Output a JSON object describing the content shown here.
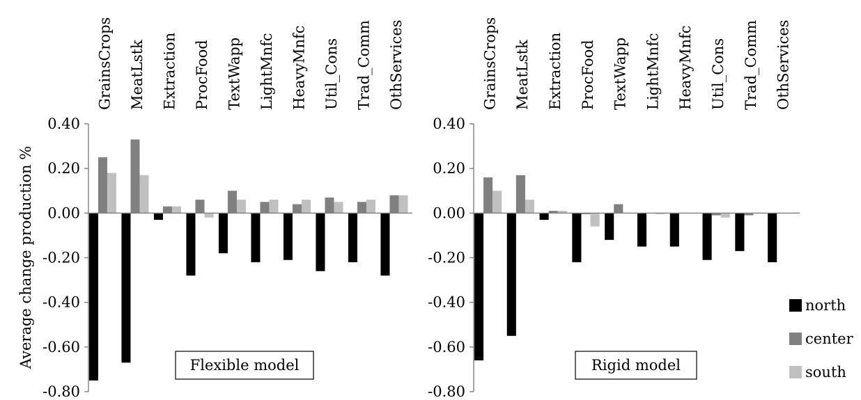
{
  "chart_data": [
    {
      "type": "bar",
      "panel_label": "Flexible model",
      "categories": [
        "GrainsCrops",
        "MeatLstk",
        "Extraction",
        "ProcFood",
        "TextWapp",
        "LightMnfc",
        "HeavyMnfc",
        "Util_Cons",
        "Trad_Comm",
        "OthServices"
      ],
      "series": [
        {
          "name": "north",
          "color": "#000000",
          "values": [
            -0.75,
            -0.67,
            -0.03,
            -0.28,
            -0.18,
            -0.22,
            -0.21,
            -0.26,
            -0.22,
            -0.28
          ]
        },
        {
          "name": "center",
          "color": "#808080",
          "values": [
            0.25,
            0.33,
            0.03,
            0.06,
            0.1,
            0.05,
            0.04,
            0.07,
            0.05,
            0.08
          ]
        },
        {
          "name": "south",
          "color": "#c0c0c0",
          "values": [
            0.18,
            0.17,
            0.03,
            -0.02,
            0.06,
            0.06,
            0.06,
            0.05,
            0.06,
            0.08
          ]
        }
      ],
      "ylabel": "Average change production %",
      "ylim": [
        -0.8,
        0.4
      ],
      "yticks": [
        "0.40",
        "0.20",
        "0.00",
        "-0.20",
        "-0.40",
        "-0.60",
        "-0.80"
      ],
      "grid": false
    },
    {
      "type": "bar",
      "panel_label": "Rigid model",
      "categories": [
        "GrainsCrops",
        "MeatLstk",
        "Extraction",
        "ProcFood",
        "TextWapp",
        "LightMnfc",
        "HeavyMnfc",
        "Util_Cons",
        "Trad_Comm",
        "OthServices"
      ],
      "series": [
        {
          "name": "north",
          "color": "#000000",
          "values": [
            -0.66,
            -0.55,
            -0.03,
            -0.22,
            -0.12,
            -0.15,
            -0.15,
            -0.21,
            -0.17,
            -0.22
          ]
        },
        {
          "name": "center",
          "color": "#808080",
          "values": [
            0.16,
            0.17,
            0.01,
            -0.005,
            0.04,
            0.0,
            0.0,
            -0.01,
            -0.01,
            0.0
          ]
        },
        {
          "name": "south",
          "color": "#c0c0c0",
          "values": [
            0.1,
            0.06,
            0.01,
            -0.06,
            0.0,
            -0.005,
            0.0,
            -0.02,
            0.0,
            0.0
          ]
        }
      ],
      "ylim": [
        -0.8,
        0.4
      ],
      "yticks": [
        "0.40",
        "0.20",
        "0.00",
        "-0.20",
        "-0.40",
        "-0.60",
        "-0.80"
      ],
      "grid": false
    }
  ],
  "legend": {
    "placement": "bottom-right",
    "items": [
      {
        "name": "north",
        "color": "#000000"
      },
      {
        "name": "center",
        "color": "#808080"
      },
      {
        "name": "south",
        "color": "#c0c0c0"
      }
    ]
  }
}
